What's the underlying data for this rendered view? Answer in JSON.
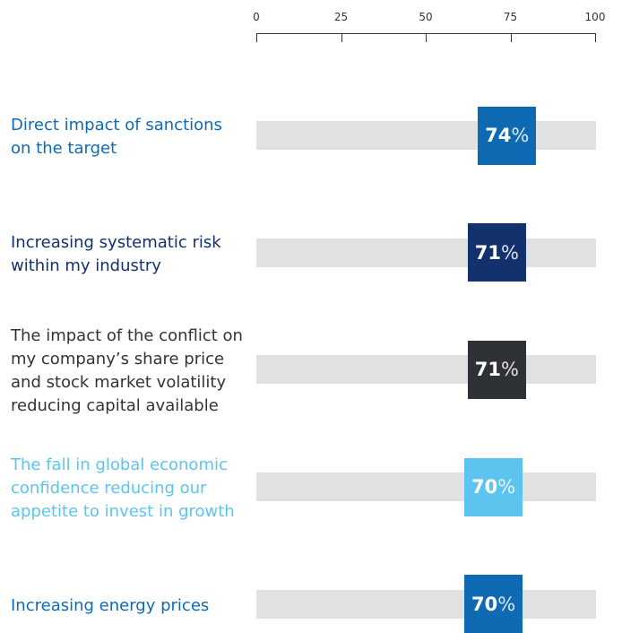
{
  "chart_data": {
    "type": "dotbar",
    "categories": [
      "Direct impact of sanctions on the target",
      "Increasing systematic risk within my industry",
      "The impact of the conflict on my company’s share price and stock market volatility reducing capital available",
      "The fall in global economic confidence reducing our appetite to invest in growth",
      "Increasing energy prices"
    ],
    "values": [
      74,
      71,
      71,
      70,
      70
    ],
    "value_labels": [
      "74%",
      "71%",
      "71%",
      "70%",
      "70%"
    ],
    "colors": [
      "#0f6ab4",
      "#13316c",
      "#2e3237",
      "#5cc4ef",
      "#0f6ab4"
    ],
    "label_colors": [
      "#0f6ab4",
      "#13316c",
      "#333333",
      "#5cc4ef",
      "#0f6ab4"
    ],
    "xlim": [
      0,
      100
    ],
    "xticks": [
      0,
      25,
      50,
      75,
      100
    ]
  }
}
